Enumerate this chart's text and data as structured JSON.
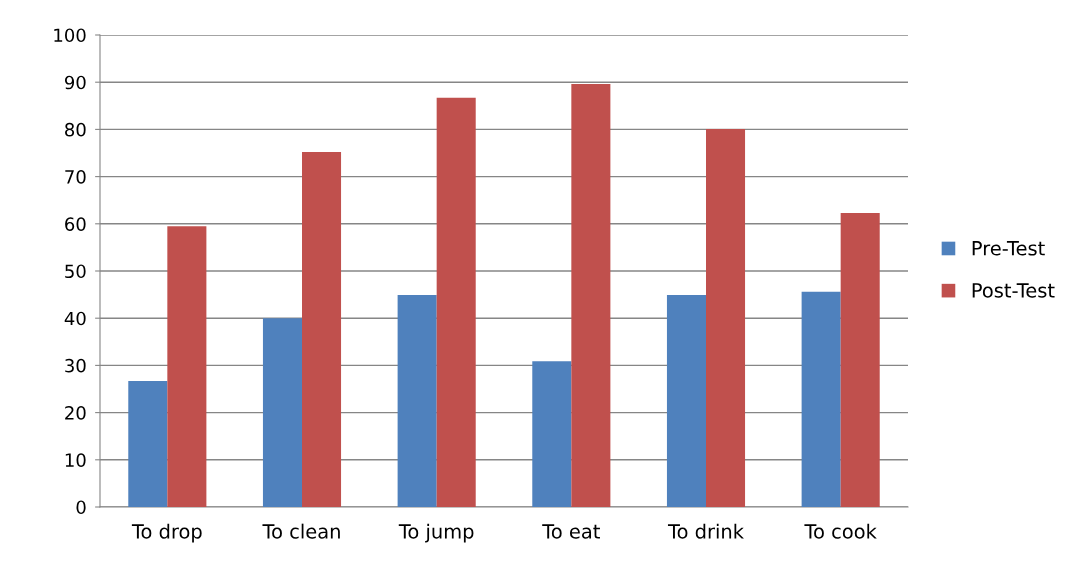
{
  "chart_data": {
    "type": "bar",
    "categories": [
      "To drop",
      "To clean",
      "To jump",
      "To eat",
      "To drink",
      "To cook"
    ],
    "series": [
      {
        "name": "Pre-Test",
        "color": "#4f81bd",
        "values": [
          26.7,
          40.0,
          44.9,
          30.9,
          44.9,
          45.6
        ]
      },
      {
        "name": "Post-Test",
        "color": "#c0504d",
        "values": [
          59.5,
          75.2,
          86.7,
          89.6,
          80.1,
          62.3
        ]
      }
    ],
    "ylim": [
      0,
      100
    ],
    "yticks": [
      0,
      10,
      20,
      30,
      40,
      50,
      60,
      70,
      80,
      90,
      100
    ],
    "grid": "y",
    "legend": "right"
  }
}
